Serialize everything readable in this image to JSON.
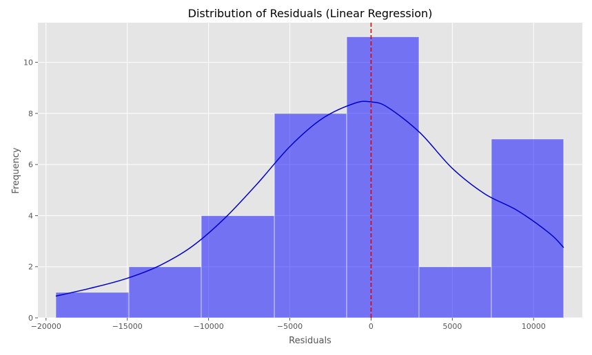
{
  "chart_data": {
    "type": "bar",
    "title": "Distribution of Residuals (Linear Regression)",
    "xlabel": "Residuals",
    "ylabel": "Frequency",
    "xlim": [
      -20500,
      13000
    ],
    "ylim": [
      0,
      11.55
    ],
    "x_ticks": [
      -20000,
      -15000,
      -10000,
      -5000,
      0,
      5000,
      10000
    ],
    "x_tick_labels": [
      "−20000",
      "−15000",
      "−10000",
      "−5000",
      "0",
      "5000",
      "10000"
    ],
    "y_ticks": [
      0,
      2,
      4,
      6,
      8,
      10
    ],
    "y_tick_labels": [
      "0",
      "2",
      "4",
      "6",
      "8",
      "10"
    ],
    "grid": true,
    "bins": [
      {
        "x0": -19400,
        "x1": -14900,
        "count": 1
      },
      {
        "x0": -14900,
        "x1": -10450,
        "count": 2
      },
      {
        "x0": -10450,
        "x1": -5950,
        "count": 4
      },
      {
        "x0": -5950,
        "x1": -1500,
        "count": 8
      },
      {
        "x0": -1500,
        "x1": 2950,
        "count": 11
      },
      {
        "x0": 2950,
        "x1": 7400,
        "count": 2
      },
      {
        "x0": 7400,
        "x1": 11850,
        "count": 7
      }
    ],
    "kde": {
      "x": [
        -19400,
        -17000,
        -15000,
        -13000,
        -11000,
        -9000,
        -7000,
        -5000,
        -3000,
        -1000,
        0,
        1000,
        3000,
        5000,
        7000,
        9000,
        11000,
        11850
      ],
      "y": [
        0.85,
        1.2,
        1.55,
        2.05,
        2.8,
        3.9,
        5.25,
        6.7,
        7.8,
        8.4,
        8.45,
        8.25,
        7.25,
        5.85,
        4.85,
        4.2,
        3.3,
        2.75
      ]
    },
    "vline": {
      "x": 0,
      "style": "dashed"
    },
    "colors": {
      "bars": "#0000ff",
      "kde": "#0000cc",
      "vline": "#e00000",
      "plot_background": "#e5e5e5",
      "grid": "#ffffff"
    }
  }
}
